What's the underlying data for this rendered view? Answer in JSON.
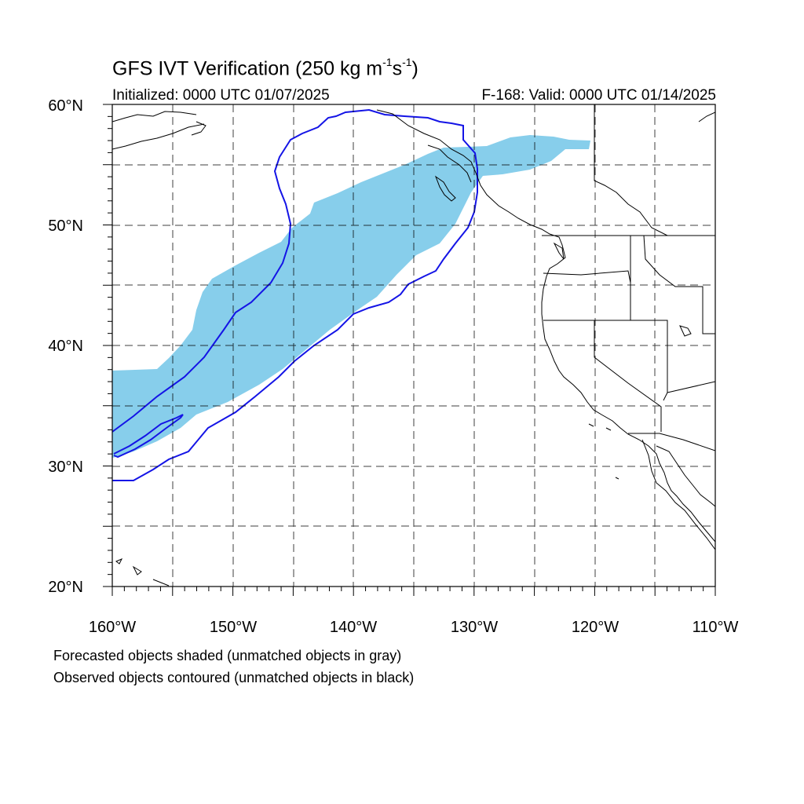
{
  "title_main": "GFS IVT Verification (250 kg m",
  "title_sup1": "-1",
  "title_mid": "s",
  "title_sup2": "-1",
  "title_end": ")",
  "initialized": "Initialized: 0000 UTC 01/07/2025",
  "valid": "F-168: Valid: 0000 UTC 01/14/2025",
  "lat_labels": [
    "60°N",
    "50°N",
    "40°N",
    "30°N",
    "20°N"
  ],
  "lon_labels": [
    "160°W",
    "150°W",
    "140°W",
    "130°W",
    "120°W",
    "110°W"
  ],
  "note_forecast": "Forecasted objects shaded (unmatched objects in gray)",
  "note_observed": "Observed objects contoured (unmatched objects in black)",
  "map_extent": {
    "lon_min": -160,
    "lon_max": -110,
    "lat_min": 20,
    "lat_max": 60
  },
  "colors": {
    "forecast_fill": "#87ceeb",
    "observed_contour": "#1414e6",
    "coast": "#000000"
  }
}
